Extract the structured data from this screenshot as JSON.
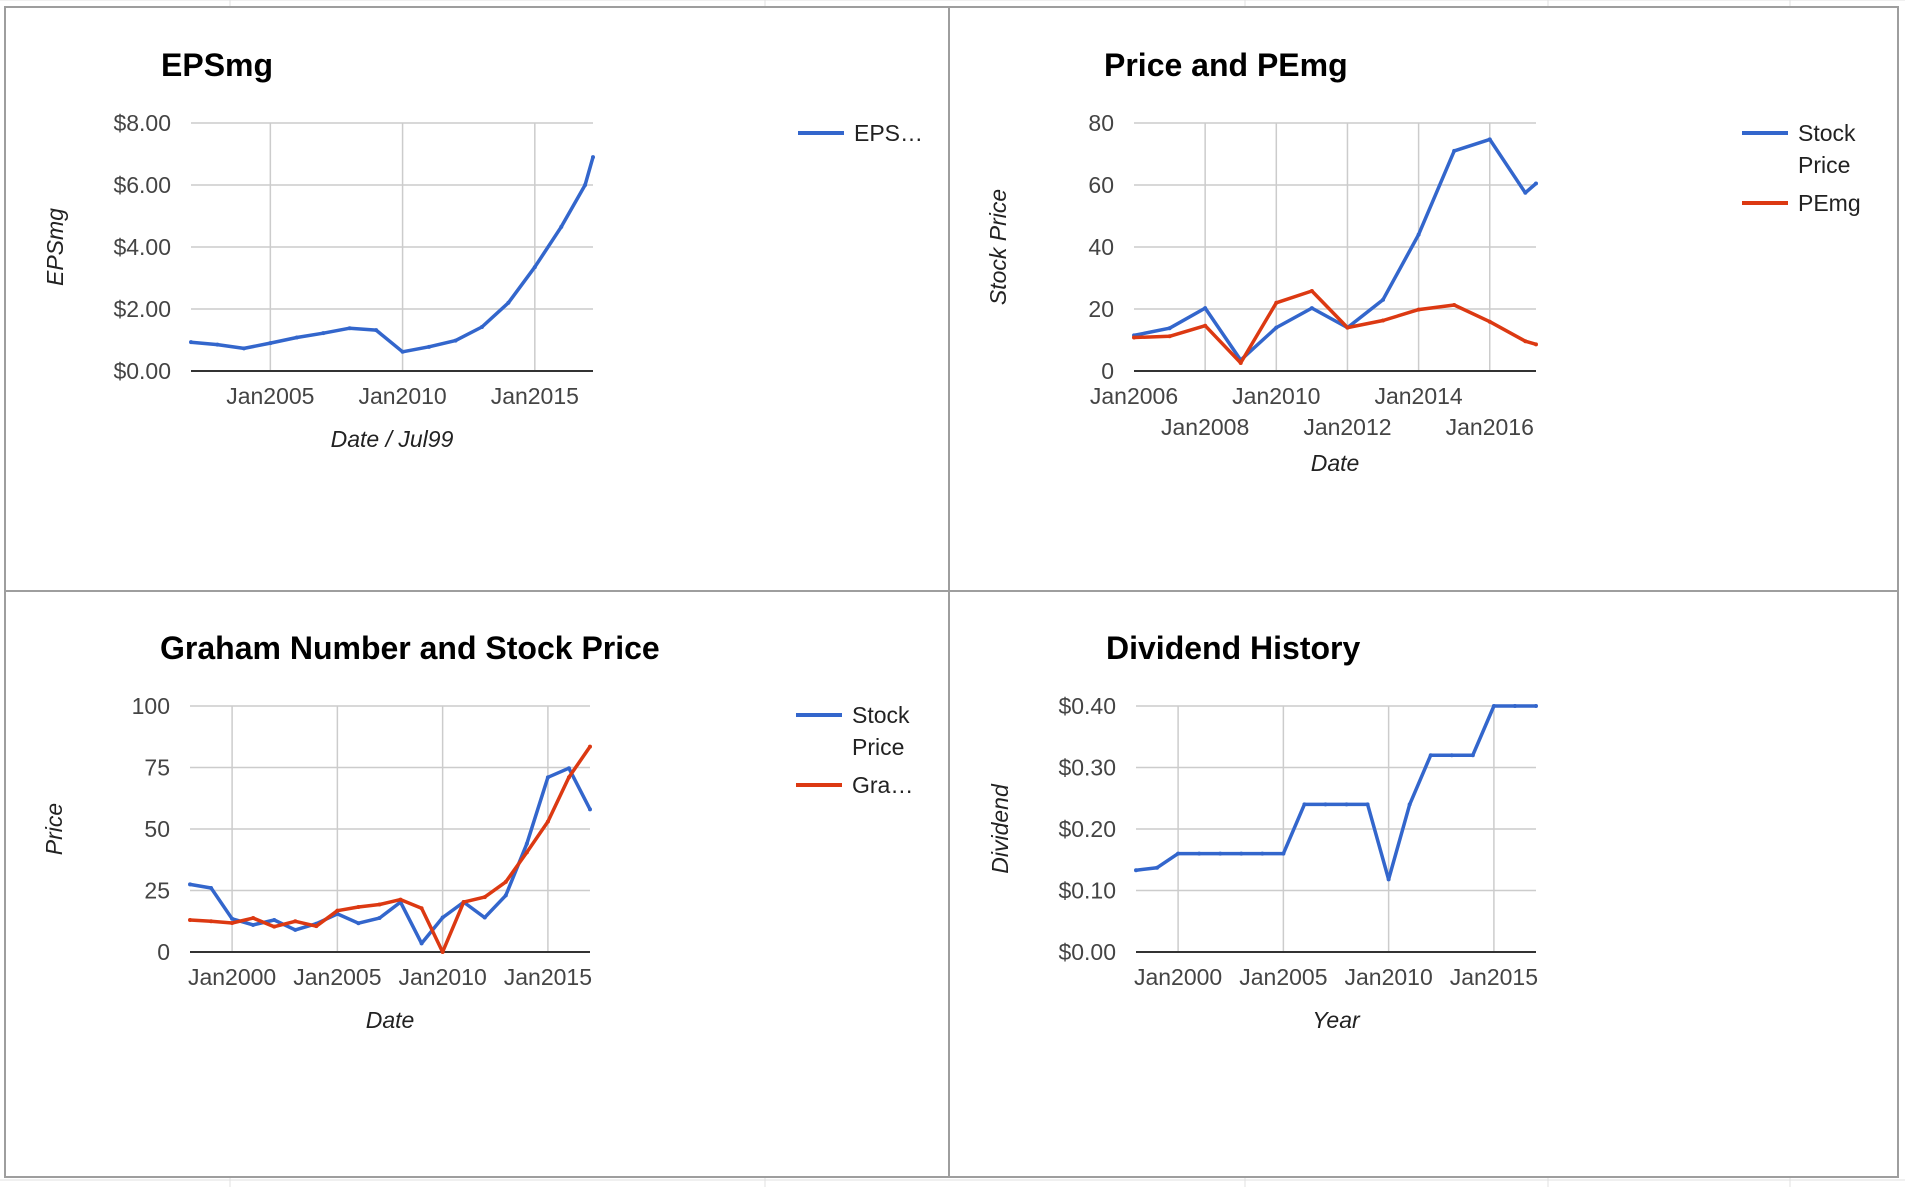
{
  "colors": {
    "blue": "#3366cc",
    "red": "#dc3912"
  },
  "chart_data": [
    {
      "id": "eps",
      "type": "line",
      "title": "EPSmg",
      "xlabel": "Date / Jul99",
      "ylabel": "EPSmg",
      "xlim": [
        2002.0,
        2017.2
      ],
      "ylim": [
        0,
        8
      ],
      "x_ticks": [
        {
          "v": 2005,
          "label": "Jan2005"
        },
        {
          "v": 2010,
          "label": "Jan2010"
        },
        {
          "v": 2015,
          "label": "Jan2015"
        }
      ],
      "y_ticks": [
        {
          "v": 0,
          "label": "$0.00"
        },
        {
          "v": 2,
          "label": "$2.00"
        },
        {
          "v": 4,
          "label": "$4.00"
        },
        {
          "v": 6,
          "label": "$6.00"
        },
        {
          "v": 8,
          "label": "$8.00"
        }
      ],
      "grid": true,
      "legend": "right",
      "series": [
        {
          "name": "EPS…",
          "color": "#3366cc",
          "x": [
            2002.0,
            2003.0,
            2004.0,
            2005.0,
            2006.0,
            2007.0,
            2008.0,
            2009.0,
            2010.0,
            2011.0,
            2012.0,
            2013.0,
            2014.0,
            2015.0,
            2016.0,
            2016.9,
            2017.2
          ],
          "values": [
            0.93,
            0.85,
            0.73,
            0.9,
            1.08,
            1.22,
            1.38,
            1.32,
            0.62,
            0.78,
            0.98,
            1.42,
            2.2,
            3.35,
            4.65,
            6.0,
            6.9
          ]
        }
      ]
    },
    {
      "id": "pe",
      "type": "line",
      "title": "Price and PEmg",
      "xlabel": "Date",
      "ylabel": "Stock Price",
      "xlim": [
        2006.0,
        2017.3
      ],
      "ylim": [
        0,
        80
      ],
      "x_ticks": [
        {
          "v": 2006,
          "label": "Jan2006"
        },
        {
          "v": 2008,
          "label": "Jan2008"
        },
        {
          "v": 2010,
          "label": "Jan2010"
        },
        {
          "v": 2012,
          "label": "Jan2012"
        },
        {
          "v": 2014,
          "label": "Jan2014"
        },
        {
          "v": 2016,
          "label": "Jan2016"
        }
      ],
      "y_ticks": [
        {
          "v": 0,
          "label": "0"
        },
        {
          "v": 20,
          "label": "20"
        },
        {
          "v": 40,
          "label": "40"
        },
        {
          "v": 60,
          "label": "60"
        },
        {
          "v": 80,
          "label": "80"
        }
      ],
      "grid": true,
      "legend": "right",
      "series": [
        {
          "name": "Stock Price",
          "color": "#3366cc",
          "x": [
            2006.0,
            2007.0,
            2008.0,
            2009.0,
            2010.0,
            2011.0,
            2012.0,
            2013.0,
            2014.0,
            2015.0,
            2016.0,
            2017.0,
            2017.3
          ],
          "values": [
            11.5,
            13.8,
            20.3,
            3.5,
            14.0,
            20.3,
            14.0,
            23.0,
            44.0,
            71.0,
            74.7,
            57.5,
            60.5
          ]
        },
        {
          "name": "PEmg",
          "color": "#dc3912",
          "x": [
            2006.0,
            2007.0,
            2008.0,
            2009.0,
            2010.0,
            2011.0,
            2012.0,
            2013.0,
            2014.0,
            2015.0,
            2016.0,
            2017.0,
            2017.3
          ],
          "values": [
            10.8,
            11.2,
            14.6,
            2.6,
            22.0,
            25.8,
            14.0,
            16.3,
            19.8,
            21.3,
            15.9,
            9.6,
            8.6
          ]
        }
      ]
    },
    {
      "id": "graham",
      "type": "line",
      "title": "Graham Number and Stock Price",
      "xlabel": "Date",
      "ylabel": "Price",
      "xlim": [
        1998.0,
        2017.0
      ],
      "ylim": [
        0,
        100
      ],
      "x_ticks": [
        {
          "v": 2000,
          "label": "Jan2000"
        },
        {
          "v": 2005,
          "label": "Jan2005"
        },
        {
          "v": 2010,
          "label": "Jan2010"
        },
        {
          "v": 2015,
          "label": "Jan2015"
        }
      ],
      "y_ticks": [
        {
          "v": 0,
          "label": "0"
        },
        {
          "v": 25,
          "label": "25"
        },
        {
          "v": 50,
          "label": "50"
        },
        {
          "v": 75,
          "label": "75"
        },
        {
          "v": 100,
          "label": "100"
        }
      ],
      "grid": true,
      "legend": "right",
      "series": [
        {
          "name": "Stock Price",
          "color": "#3366cc",
          "x": [
            1998.0,
            1999.0,
            2000.0,
            2001.0,
            2002.0,
            2003.0,
            2004.0,
            2005.0,
            2006.0,
            2007.0,
            2008.0,
            2009.0,
            2010.0,
            2011.0,
            2012.0,
            2013.0,
            2014.0,
            2015.0,
            2016.0,
            2017.0
          ],
          "values": [
            27.5,
            26.0,
            13.5,
            11.0,
            13.0,
            9.0,
            11.5,
            15.5,
            11.7,
            13.8,
            20.3,
            3.5,
            14.0,
            20.3,
            14.0,
            23.0,
            44.0,
            71.0,
            74.7,
            58.0
          ]
        },
        {
          "name": "Gra…",
          "color": "#dc3912",
          "x": [
            1998.0,
            1999.0,
            2000.0,
            2001.0,
            2002.0,
            2003.0,
            2004.0,
            2005.0,
            2006.0,
            2007.0,
            2008.0,
            2009.0,
            2010.0,
            2011.0,
            2012.0,
            2013.0,
            2014.0,
            2015.0,
            2016.0,
            2017.0
          ],
          "values": [
            13.0,
            12.5,
            11.8,
            13.8,
            10.3,
            12.5,
            10.5,
            16.8,
            18.3,
            19.3,
            21.3,
            17.8,
            0.0,
            20.3,
            22.3,
            28.5,
            40.5,
            53.0,
            71.0,
            83.5
          ]
        }
      ]
    },
    {
      "id": "dividend",
      "type": "line",
      "title": "Dividend History",
      "xlabel": "Year",
      "ylabel": "Dividend",
      "xlim": [
        1998.0,
        2017.0
      ],
      "ylim": [
        0,
        0.4
      ],
      "x_ticks": [
        {
          "v": 2000,
          "label": "Jan2000"
        },
        {
          "v": 2005,
          "label": "Jan2005"
        },
        {
          "v": 2010,
          "label": "Jan2010"
        },
        {
          "v": 2015,
          "label": "Jan2015"
        }
      ],
      "y_ticks": [
        {
          "v": 0,
          "label": "$0.00"
        },
        {
          "v": 0.1,
          "label": "$0.10"
        },
        {
          "v": 0.2,
          "label": "$0.20"
        },
        {
          "v": 0.3,
          "label": "$0.30"
        },
        {
          "v": 0.4,
          "label": "$0.40"
        }
      ],
      "grid": true,
      "legend": "none",
      "series": [
        {
          "name": "",
          "color": "#3366cc",
          "x": [
            1998.0,
            1999.0,
            2000.0,
            2001.0,
            2002.0,
            2003.0,
            2004.0,
            2005.0,
            2006.0,
            2007.0,
            2008.0,
            2009.0,
            2010.0,
            2011.0,
            2012.0,
            2013.0,
            2014.0,
            2015.0,
            2016.0,
            2017.0
          ],
          "values": [
            0.133,
            0.137,
            0.16,
            0.16,
            0.16,
            0.16,
            0.16,
            0.16,
            0.24,
            0.24,
            0.24,
            0.24,
            0.118,
            0.24,
            0.32,
            0.32,
            0.32,
            0.4,
            0.4,
            0.4
          ]
        }
      ]
    }
  ]
}
